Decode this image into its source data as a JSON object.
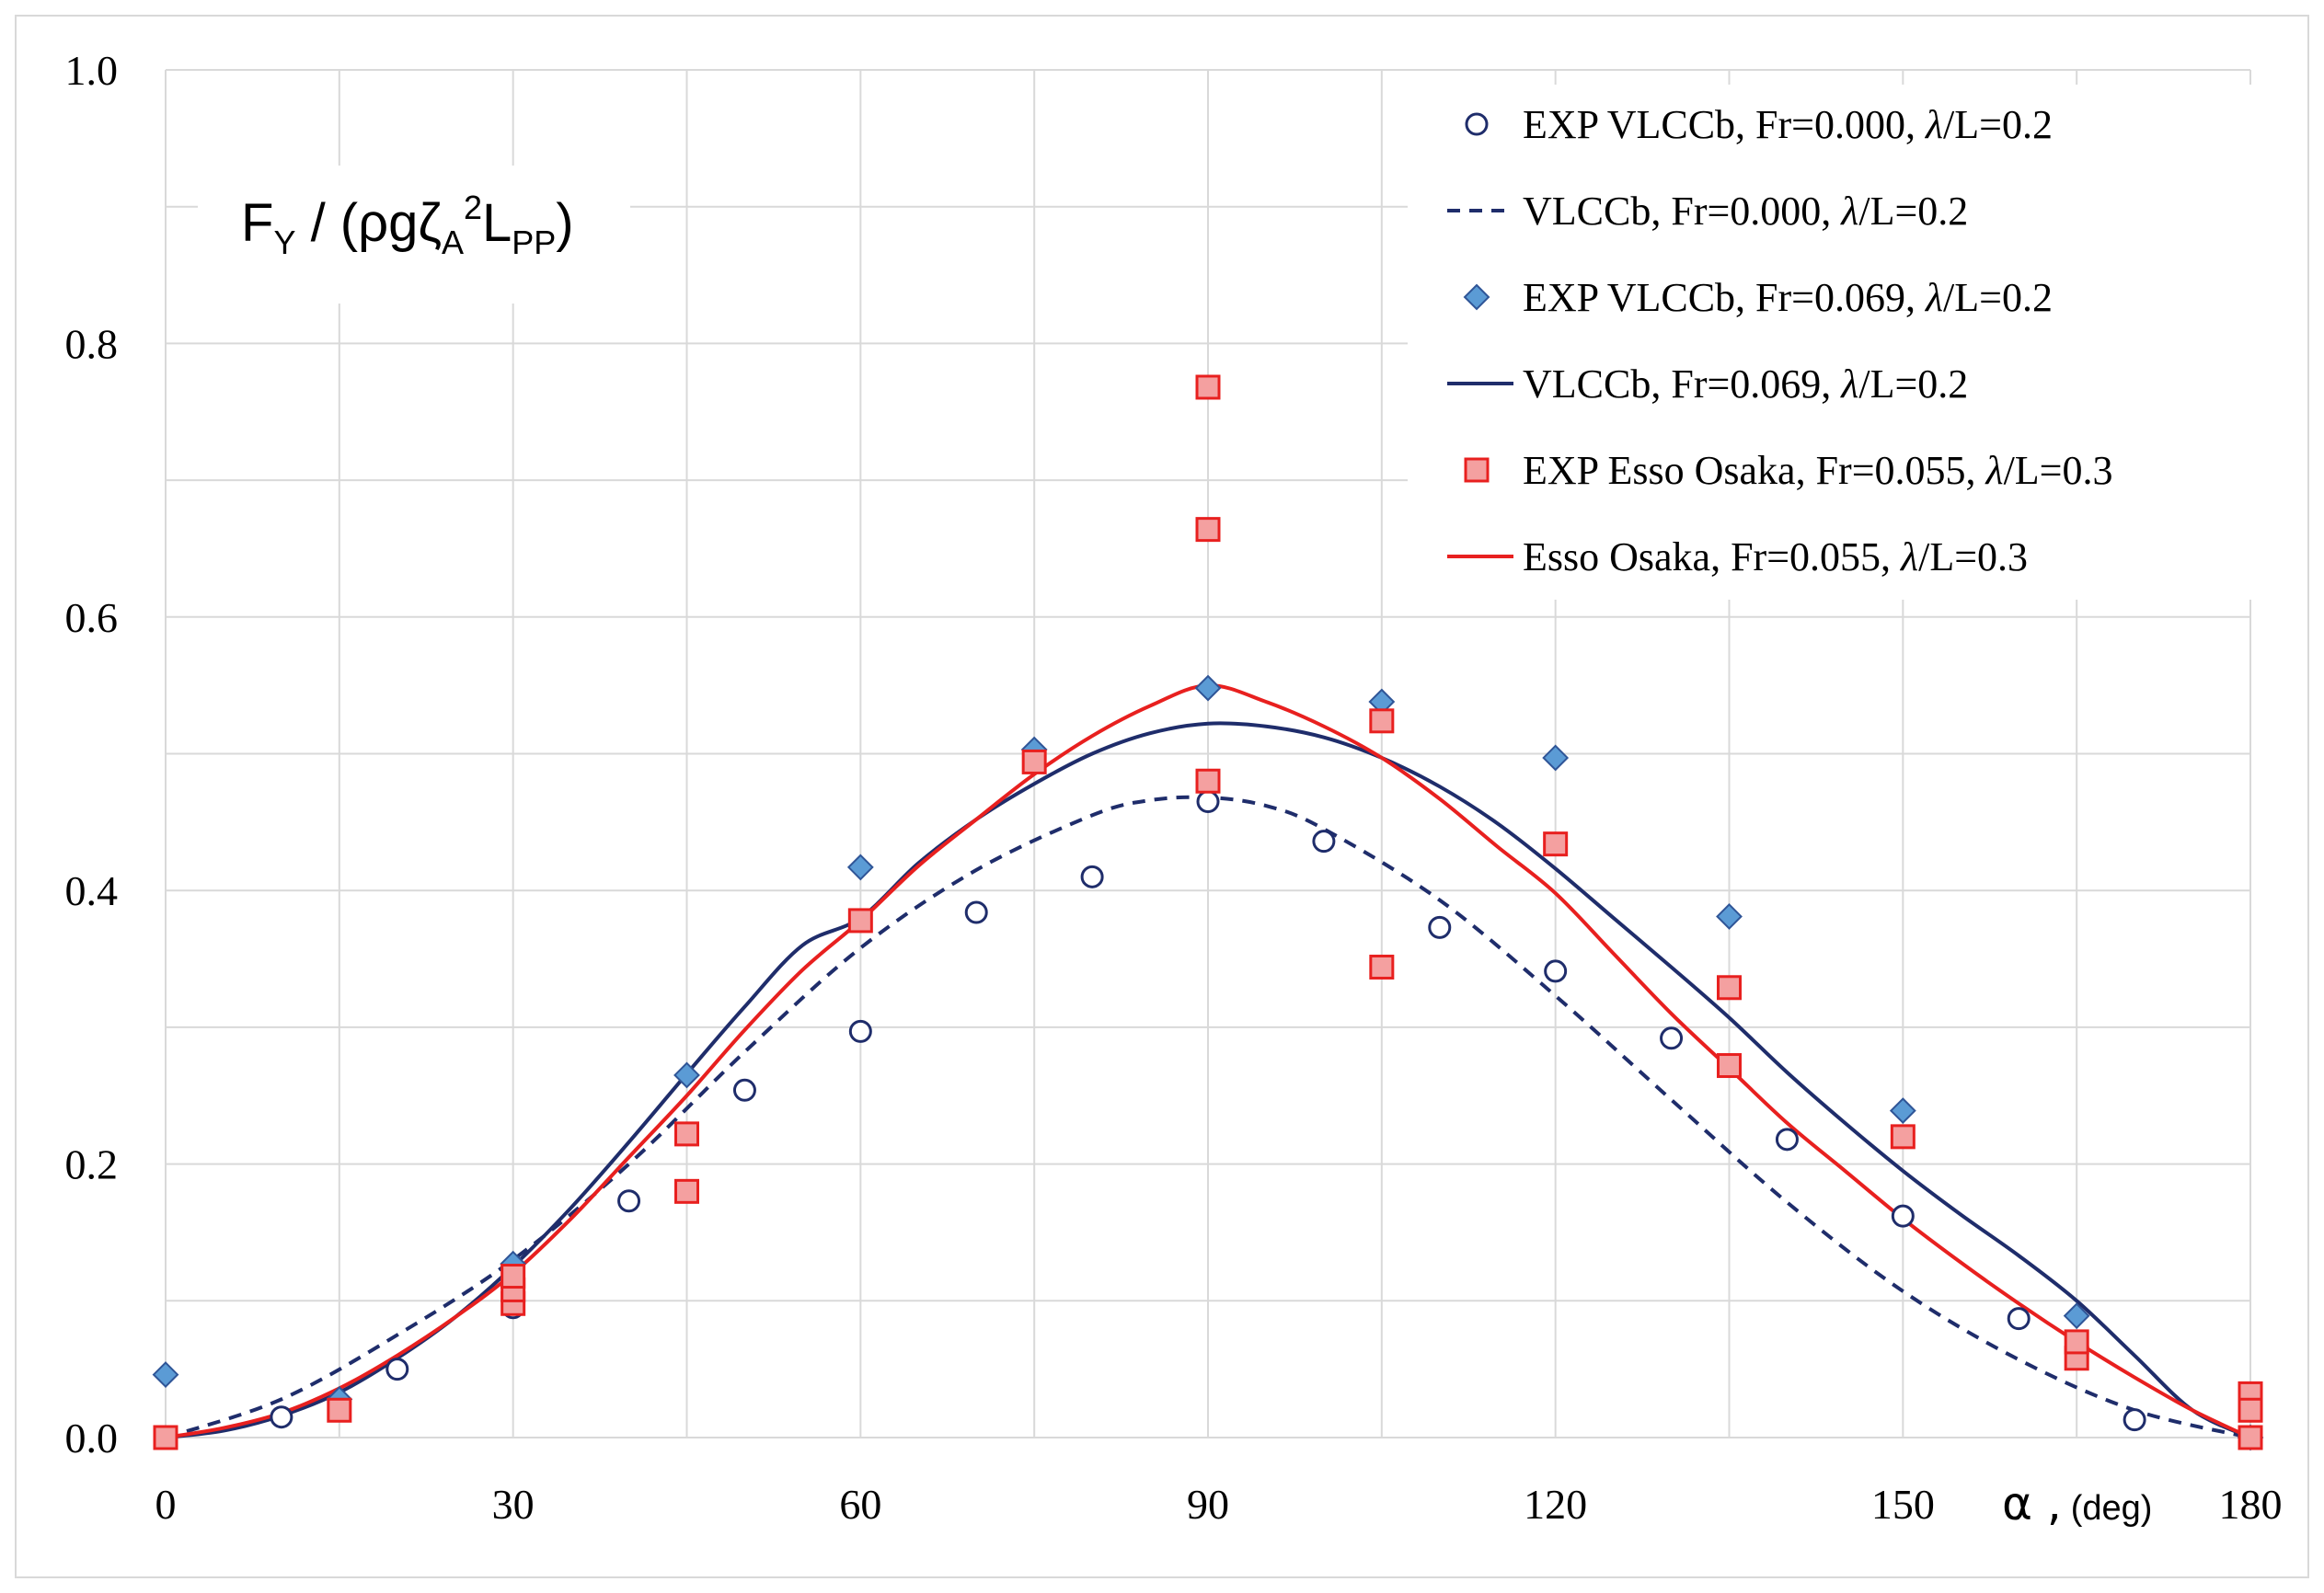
{
  "chart_data": {
    "type": "line",
    "ylabel": {
      "main": "F",
      "sub1": "Y",
      "mid": " / (ρgζ",
      "sub2": "A",
      "sup": "2",
      "mid2": "L",
      "sub3": "PP",
      "end": ")"
    },
    "xlabel": {
      "symbol": "α ,",
      "unit": "(deg)"
    },
    "xlim": [
      0,
      180
    ],
    "ylim": [
      0,
      1.0
    ],
    "x_ticks": [
      0,
      30,
      60,
      90,
      120,
      150,
      180
    ],
    "x_tick_labels": [
      "0",
      "30",
      "60",
      "90",
      "120",
      "150",
      "180"
    ],
    "y_ticks": [
      0,
      0.2,
      0.4,
      0.6,
      0.8,
      1.0
    ],
    "y_tick_labels": [
      "0.0",
      "0.2",
      "0.4",
      "0.6",
      "0.8",
      "1.0"
    ],
    "x_minor_step": 15,
    "y_minor_step": 0.1,
    "grid": true,
    "legend_position": "top-right",
    "series": [
      {
        "name": "EXP VLCCb, Fr=0.000, ",
        "lambda_suffix": "/L=0.2",
        "kind": "scatter",
        "marker": "circle",
        "color": "#1f2d6b",
        "x": [
          0,
          10,
          15,
          20,
          30,
          40,
          50,
          60,
          70,
          80,
          90,
          100,
          110,
          120,
          130,
          140,
          150,
          160,
          170,
          180
        ],
        "y": [
          0.0,
          0.015,
          0.025,
          0.05,
          0.095,
          0.173,
          0.254,
          0.297,
          0.384,
          0.41,
          0.465,
          0.436,
          0.373,
          0.341,
          0.292,
          0.218,
          0.162,
          0.087,
          0.013,
          0.0
        ]
      },
      {
        "name": "VLCCb, Fr=0.000, ",
        "lambda_suffix": "/L=0.2",
        "kind": "line",
        "dash": "dashed",
        "color": "#1f2d6b",
        "x": [
          0,
          10,
          20,
          30,
          40,
          50,
          60,
          70,
          80,
          85,
          90,
          95,
          100,
          110,
          120,
          130,
          140,
          150,
          160,
          170,
          180
        ],
        "y": [
          0.0,
          0.028,
          0.075,
          0.13,
          0.2,
          0.282,
          0.358,
          0.415,
          0.455,
          0.466,
          0.468,
          0.462,
          0.445,
          0.393,
          0.323,
          0.247,
          0.172,
          0.107,
          0.057,
          0.02,
          0.0
        ]
      },
      {
        "name": "EXP VLCCb, Fr=0.069, ",
        "lambda_suffix": "/L=0.2",
        "kind": "scatter",
        "marker": "diamond",
        "color": "#5b9bd5",
        "stroke": "#2f5597",
        "x": [
          0,
          15,
          30,
          45,
          60,
          75,
          90,
          105,
          120,
          135,
          150,
          165,
          180
        ],
        "y": [
          0.046,
          0.028,
          0.127,
          0.265,
          0.417,
          0.503,
          0.548,
          0.538,
          0.497,
          0.381,
          0.239,
          0.089,
          0.0
        ]
      },
      {
        "name": "VLCCb, Fr=0.069, ",
        "lambda_suffix": "/L=0.2",
        "kind": "line",
        "dash": "solid",
        "color": "#1f2d6b",
        "x": [
          0,
          5,
          10,
          15,
          20,
          25,
          30,
          35,
          40,
          45,
          50,
          55,
          60,
          65,
          70,
          75,
          80,
          85,
          90,
          95,
          100,
          105,
          110,
          115,
          120,
          125,
          130,
          135,
          140,
          145,
          150,
          155,
          160,
          165,
          170,
          175,
          180
        ],
        "y": [
          0.0,
          0.005,
          0.016,
          0.033,
          0.058,
          0.088,
          0.125,
          0.168,
          0.216,
          0.266,
          0.315,
          0.36,
          0.38,
          0.42,
          0.452,
          0.478,
          0.5,
          0.515,
          0.522,
          0.52,
          0.512,
          0.497,
          0.476,
          0.449,
          0.416,
          0.38,
          0.344,
          0.307,
          0.267,
          0.23,
          0.195,
          0.163,
          0.133,
          0.1,
          0.06,
          0.02,
          0.0
        ]
      },
      {
        "name": "EXP Esso Osaka, Fr=0.055, ",
        "lambda_suffix": "/L=0.3",
        "kind": "scatter",
        "marker": "square",
        "color": "#f4a0a0",
        "stroke": "#e8201f",
        "x": [
          0,
          15,
          30,
          30,
          30,
          45,
          45,
          60,
          75,
          90,
          90,
          90,
          105,
          105,
          120,
          135,
          135,
          150,
          165,
          165,
          180,
          180,
          180
        ],
        "y": [
          0.0,
          0.02,
          0.098,
          0.108,
          0.118,
          0.18,
          0.222,
          0.378,
          0.494,
          0.768,
          0.664,
          0.48,
          0.524,
          0.344,
          0.434,
          0.329,
          0.272,
          0.22,
          0.058,
          0.07,
          0.032,
          0.02,
          0.0
        ]
      },
      {
        "name": "Esso Osaka, Fr=0.055, ",
        "lambda_suffix": "/L=0.3",
        "kind": "line",
        "dash": "solid",
        "color": "#e8201f",
        "x": [
          0,
          5,
          10,
          15,
          20,
          25,
          30,
          35,
          40,
          45,
          50,
          55,
          60,
          65,
          70,
          75,
          80,
          85,
          90,
          95,
          100,
          105,
          110,
          115,
          120,
          125,
          130,
          135,
          140,
          145,
          150,
          155,
          160,
          165,
          170,
          175,
          180
        ],
        "y": [
          0.0,
          0.007,
          0.018,
          0.036,
          0.06,
          0.088,
          0.12,
          0.16,
          0.205,
          0.25,
          0.298,
          0.342,
          0.378,
          0.418,
          0.452,
          0.485,
          0.513,
          0.535,
          0.55,
          0.538,
          0.52,
          0.497,
          0.467,
          0.432,
          0.398,
          0.354,
          0.31,
          0.27,
          0.23,
          0.195,
          0.16,
          0.128,
          0.098,
          0.07,
          0.044,
          0.02,
          0.0
        ]
      }
    ]
  }
}
